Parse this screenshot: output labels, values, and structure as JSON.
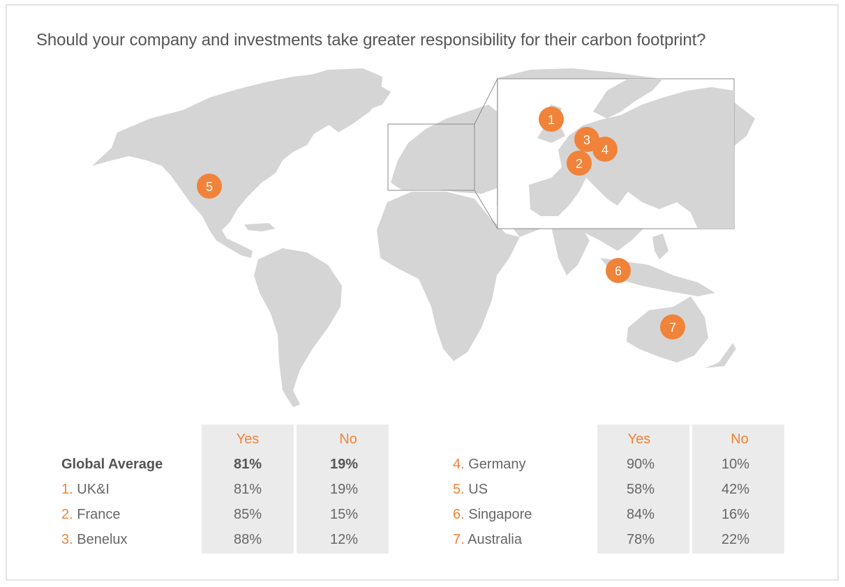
{
  "title": "Should your company and investments take greater responsibility for their carbon footprint?",
  "colors": {
    "accent": "#f08339",
    "land": "#d5d5d5",
    "column_bg": "#ebebeb",
    "text": "#666666"
  },
  "markers": [
    "1",
    "2",
    "3",
    "4",
    "5",
    "6",
    "7"
  ],
  "table_left": {
    "headers": {
      "yes": "Yes",
      "no": "No"
    },
    "rows": [
      {
        "index": "",
        "name": "Global Average",
        "yes": "81%",
        "no": "19%"
      },
      {
        "index": "1.",
        "name": "UK&I",
        "yes": "81%",
        "no": "19%"
      },
      {
        "index": "2.",
        "name": "France",
        "yes": "85%",
        "no": "15%"
      },
      {
        "index": "3.",
        "name": "Benelux",
        "yes": "88%",
        "no": "12%"
      }
    ]
  },
  "table_right": {
    "headers": {
      "yes": "Yes",
      "no": "No"
    },
    "rows": [
      {
        "index": "4.",
        "name": "Germany",
        "yes": "90%",
        "no": "10%"
      },
      {
        "index": "5.",
        "name": "US",
        "yes": "58%",
        "no": "42%"
      },
      {
        "index": "6.",
        "name": "Singapore",
        "yes": "84%",
        "no": "16%"
      },
      {
        "index": "7.",
        "name": "Australia",
        "yes": "78%",
        "no": "22%"
      }
    ]
  }
}
